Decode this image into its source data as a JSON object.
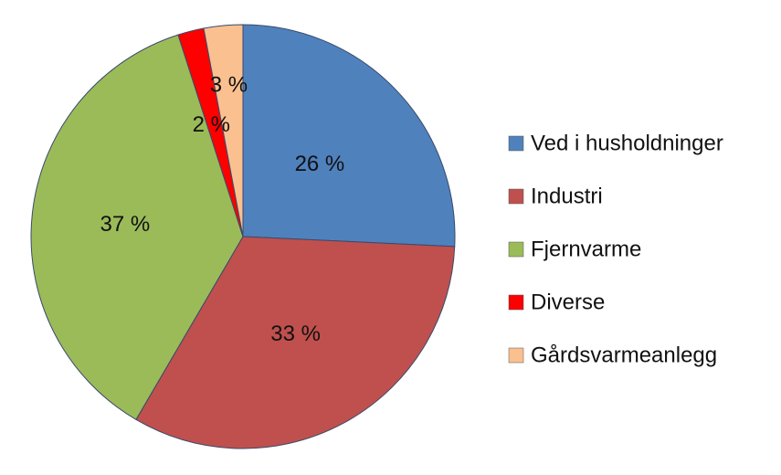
{
  "chart_data": {
    "type": "pie",
    "title": "",
    "slices": [
      {
        "label": "Ved i husholdninger",
        "value": 26,
        "value_label": "26 %",
        "color": "#4F81BD"
      },
      {
        "label": "Industri",
        "value": 33,
        "value_label": "33 %",
        "color": "#C0504D"
      },
      {
        "label": "Fjernvarme",
        "value": 37,
        "value_label": "37 %",
        "color": "#9BBB59"
      },
      {
        "label": "Diverse",
        "value": 2,
        "value_label": "2 %",
        "color": "#FF0000"
      },
      {
        "label": "Gårdsvarmeanlegg",
        "value": 3,
        "value_label": "3 %",
        "color": "#FAC090"
      }
    ],
    "start_angle": "12 o'clock",
    "direction": "clockwise",
    "legend_position": "right"
  }
}
